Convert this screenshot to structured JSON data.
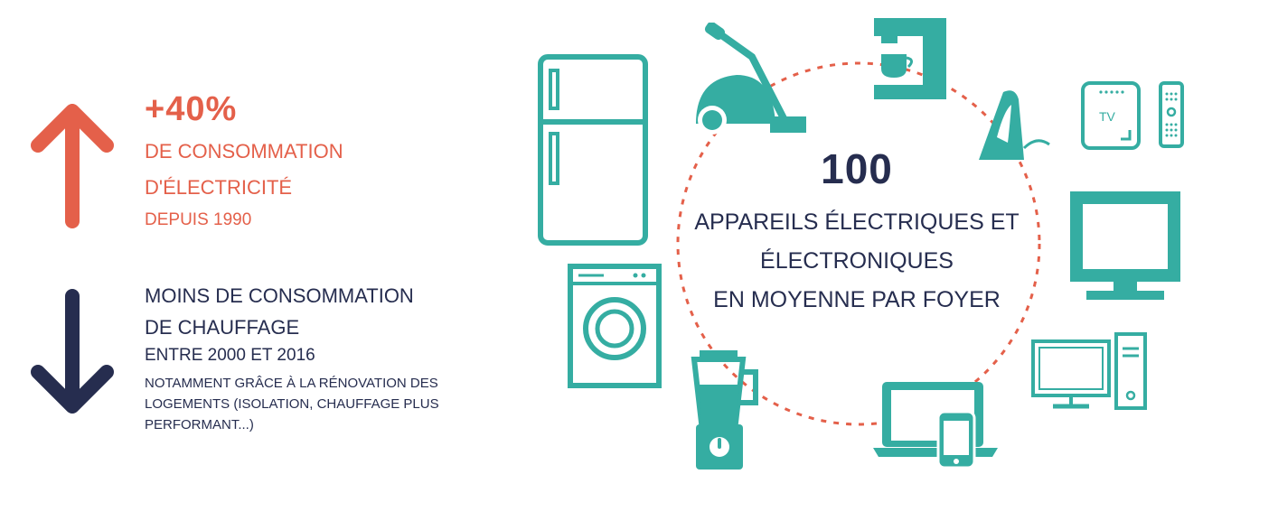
{
  "colors": {
    "accent_red": "#e4604a",
    "navy": "#262d4f",
    "teal": "#35ada2"
  },
  "increase": {
    "value": "+40%",
    "line1": "DE CONSOMMATION",
    "line2": "D'ÉLECTRICITÉ",
    "line3": "DEPUIS 1990"
  },
  "decrease": {
    "line1": "MOINS DE CONSOMMATION",
    "line2": "DE CHAUFFAGE",
    "line3": "ENTRE 2000 ET 2016",
    "note": "NOTAMMENT GRÂCE À LA RÉNOVATION DES LOGEMENTS (ISOLATION, CHAUFFAGE PLUS PERFORMANT...)"
  },
  "center": {
    "number": "100",
    "line1": "APPAREILS ÉLECTRIQUES ET",
    "line2": "ÉLECTRONIQUES",
    "line3": "EN MOYENNE PAR FOYER"
  },
  "icons": {
    "tv_box_label": "TV"
  }
}
